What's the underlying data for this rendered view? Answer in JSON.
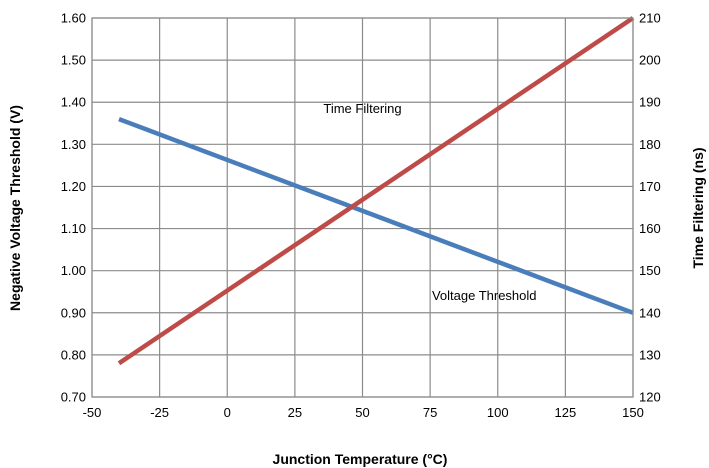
{
  "chart_data": {
    "type": "line",
    "xlabel": "Junction Temperature (°C)",
    "ylabel": "Negative Voltage Threshold (V)",
    "y2label": "Time Filtering (ns)",
    "xlim": [
      -50,
      150
    ],
    "ylim": [
      0.7,
      1.6
    ],
    "y2lim": [
      120,
      210
    ],
    "grid": true,
    "x_ticks": [
      "-50",
      "-25",
      "0",
      "25",
      "50",
      "75",
      "100",
      "125",
      "150"
    ],
    "y_ticks": [
      "0.70",
      "0.80",
      "0.90",
      "1.00",
      "1.10",
      "1.20",
      "1.30",
      "1.40",
      "1.50",
      "1.60"
    ],
    "y2_ticks": [
      "120",
      "130",
      "140",
      "150",
      "160",
      "170",
      "180",
      "190",
      "200",
      "210"
    ],
    "series": [
      {
        "name": "Voltage Threshold",
        "axis": "left",
        "color": "#4a7ebb",
        "x": [
          -40,
          150
        ],
        "y": [
          1.36,
          0.9
        ]
      },
      {
        "name": "Time Filtering",
        "axis": "right",
        "color": "#be4b48",
        "x": [
          -40,
          150
        ],
        "y": [
          128,
          210
        ]
      }
    ],
    "annotations": [
      {
        "text": "Time Filtering",
        "series": "Time Filtering",
        "x": 50,
        "y": 187.5
      },
      {
        "text": "Voltage Threshold",
        "series": "Voltage Threshold",
        "x": 95,
        "y": 0.93
      }
    ]
  }
}
